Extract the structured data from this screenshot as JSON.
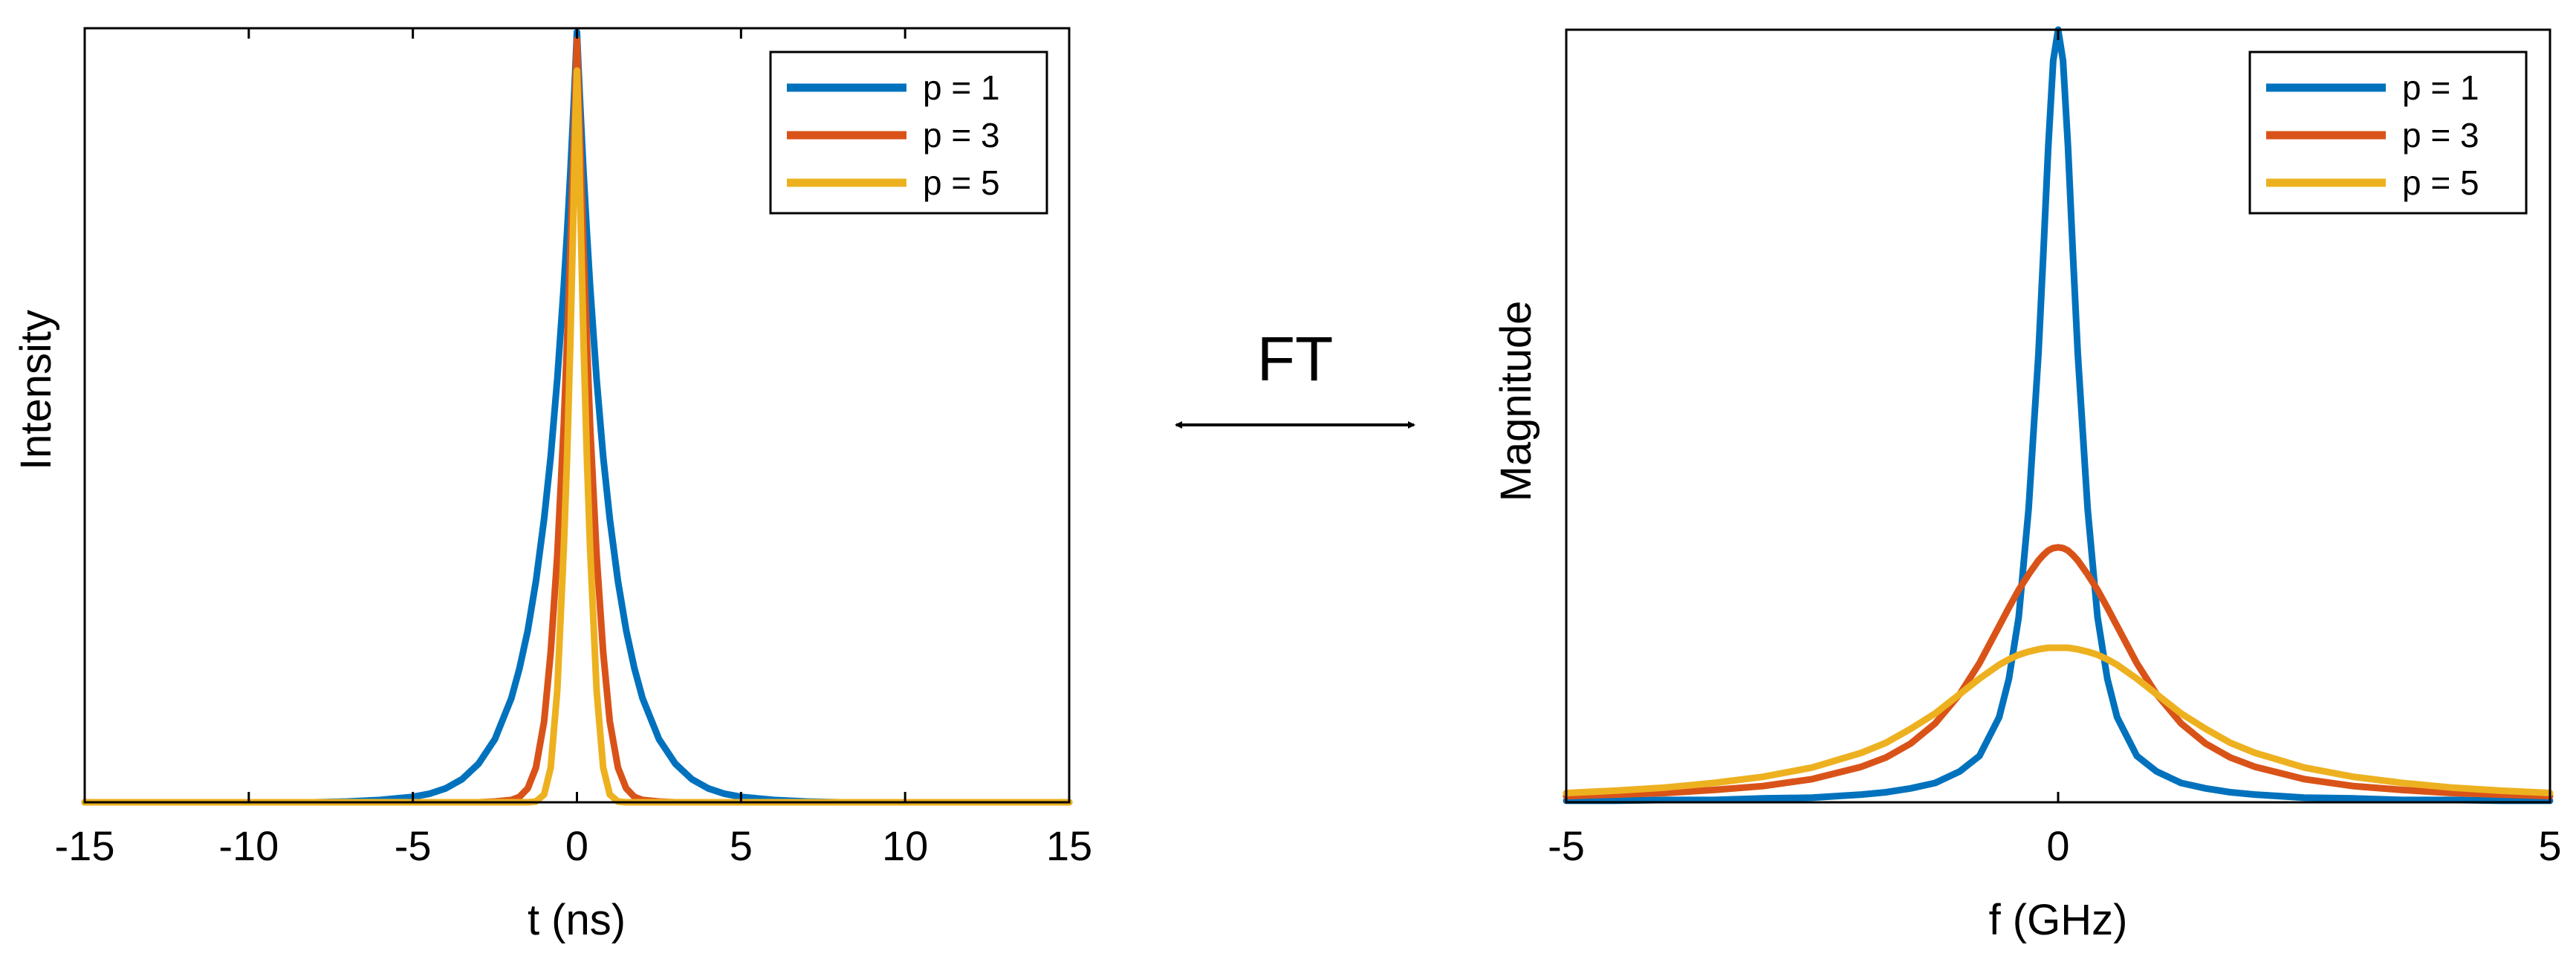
{
  "chart_data": [
    {
      "type": "line",
      "title": "",
      "xlabel": "t (ns)",
      "ylabel": "Intensity",
      "xlim": [
        -15,
        15
      ],
      "ylim": [
        0,
        1.005
      ],
      "yticks_shown": false,
      "xticks": [
        -15,
        -10,
        -5,
        0,
        5,
        10,
        15
      ],
      "xtick_labels": [
        "-15",
        "-10",
        "-5",
        "0",
        "5",
        "10",
        "15"
      ],
      "legend_position": "top-right",
      "grid": false,
      "x": [
        -15,
        -12,
        -10,
        -8,
        -7,
        -6,
        -5,
        -4.5,
        -4,
        -3.5,
        -3,
        -2.5,
        -2,
        -1.75,
        -1.5,
        -1.25,
        -1,
        -0.8,
        -0.6,
        -0.4,
        -0.3,
        -0.2,
        -0.1,
        -0.05,
        0,
        0.05,
        0.1,
        0.2,
        0.3,
        0.4,
        0.6,
        0.8,
        1,
        1.25,
        1.5,
        1.75,
        2,
        2.5,
        3,
        3.5,
        4,
        4.5,
        5,
        6,
        7,
        8,
        10,
        12,
        15
      ],
      "series": [
        {
          "name": "p = 1",
          "color": "#0072BD",
          "values": [
            0.0,
            0.0,
            0.0,
            0.0,
            0.001,
            0.003,
            0.007,
            0.011,
            0.018,
            0.03,
            0.05,
            0.082,
            0.135,
            0.174,
            0.223,
            0.287,
            0.368,
            0.449,
            0.549,
            0.67,
            0.741,
            0.819,
            0.905,
            0.951,
            1.0,
            0.951,
            0.905,
            0.819,
            0.741,
            0.67,
            0.549,
            0.449,
            0.368,
            0.287,
            0.223,
            0.174,
            0.135,
            0.082,
            0.05,
            0.03,
            0.018,
            0.011,
            0.007,
            0.003,
            0.001,
            0.0,
            0.0,
            0.0,
            0.0
          ]
        },
        {
          "name": "p = 3",
          "color": "#D95319",
          "values": [
            0.0,
            0.0,
            0.0,
            0.0,
            0.0,
            0.0,
            0.0,
            0.0,
            0.0,
            0.0,
            0.0,
            0.001,
            0.003,
            0.007,
            0.018,
            0.045,
            0.105,
            0.195,
            0.32,
            0.49,
            0.6,
            0.72,
            0.855,
            0.925,
            0.99,
            0.925,
            0.855,
            0.72,
            0.6,
            0.49,
            0.32,
            0.195,
            0.105,
            0.045,
            0.018,
            0.007,
            0.003,
            0.001,
            0.0,
            0.0,
            0.0,
            0.0,
            0.0,
            0.0,
            0.0,
            0.0,
            0.0,
            0.0,
            0.0
          ]
        },
        {
          "name": "p = 5",
          "color": "#EDB120",
          "values": [
            0.0,
            0.0,
            0.0,
            0.0,
            0.0,
            0.0,
            0.0,
            0.0,
            0.0,
            0.0,
            0.0,
            0.0,
            0.0,
            0.0,
            0.0,
            0.001,
            0.01,
            0.045,
            0.145,
            0.33,
            0.45,
            0.6,
            0.78,
            0.88,
            0.95,
            0.88,
            0.78,
            0.6,
            0.45,
            0.33,
            0.145,
            0.045,
            0.01,
            0.001,
            0.0,
            0.0,
            0.0,
            0.0,
            0.0,
            0.0,
            0.0,
            0.0,
            0.0,
            0.0,
            0.0,
            0.0,
            0.0,
            0.0,
            0.0
          ]
        }
      ]
    },
    {
      "type": "line",
      "title": "",
      "xlabel": "f (GHz)",
      "ylabel": "Magnitude",
      "xlim": [
        -5,
        5
      ],
      "ylim": [
        0,
        1.0
      ],
      "yticks_shown": false,
      "xticks": [
        -5,
        0,
        5
      ],
      "xtick_labels": [
        "-5",
        "0",
        "5"
      ],
      "legend_position": "top-right",
      "grid": false,
      "x": [
        -5,
        -4.5,
        -4,
        -3.5,
        -3,
        -2.5,
        -2,
        -1.75,
        -1.5,
        -1.25,
        -1,
        -0.8,
        -0.6,
        -0.5,
        -0.4,
        -0.3,
        -0.2,
        -0.15,
        -0.1,
        -0.05,
        0,
        0.05,
        0.1,
        0.15,
        0.2,
        0.3,
        0.4,
        0.5,
        0.6,
        0.8,
        1,
        1.25,
        1.5,
        1.75,
        2,
        2.5,
        3,
        3.5,
        4,
        4.5,
        5
      ],
      "series": [
        {
          "name": "p = 1",
          "color": "#0072BD",
          "values": [
            0.002,
            0.002,
            0.003,
            0.003,
            0.005,
            0.006,
            0.01,
            0.013,
            0.018,
            0.025,
            0.04,
            0.06,
            0.11,
            0.16,
            0.24,
            0.38,
            0.58,
            0.71,
            0.85,
            0.96,
            1.0,
            0.96,
            0.85,
            0.71,
            0.58,
            0.38,
            0.24,
            0.16,
            0.11,
            0.06,
            0.04,
            0.025,
            0.018,
            0.013,
            0.01,
            0.006,
            0.005,
            0.003,
            0.003,
            0.002,
            0.002
          ]
        },
        {
          "name": "p = 3",
          "color": "#D95319",
          "values": [
            0.008,
            0.01,
            0.012,
            0.016,
            0.021,
            0.03,
            0.046,
            0.058,
            0.076,
            0.102,
            0.14,
            0.18,
            0.228,
            0.252,
            0.275,
            0.295,
            0.313,
            0.32,
            0.326,
            0.329,
            0.33,
            0.329,
            0.326,
            0.32,
            0.313,
            0.295,
            0.275,
            0.252,
            0.228,
            0.18,
            0.14,
            0.102,
            0.076,
            0.058,
            0.046,
            0.03,
            0.021,
            0.016,
            0.012,
            0.01,
            0.008
          ]
        },
        {
          "name": "p = 5",
          "color": "#EDB120",
          "values": [
            0.012,
            0.015,
            0.019,
            0.025,
            0.033,
            0.045,
            0.064,
            0.077,
            0.095,
            0.115,
            0.14,
            0.16,
            0.178,
            0.185,
            0.191,
            0.195,
            0.198,
            0.199,
            0.2,
            0.2,
            0.2,
            0.2,
            0.2,
            0.199,
            0.198,
            0.195,
            0.191,
            0.185,
            0.178,
            0.16,
            0.14,
            0.115,
            0.095,
            0.077,
            0.064,
            0.045,
            0.033,
            0.025,
            0.019,
            0.015,
            0.012
          ]
        }
      ]
    }
  ],
  "annotation": {
    "label": "FT",
    "arrow_icon": "double-headed-arrow-icon"
  }
}
